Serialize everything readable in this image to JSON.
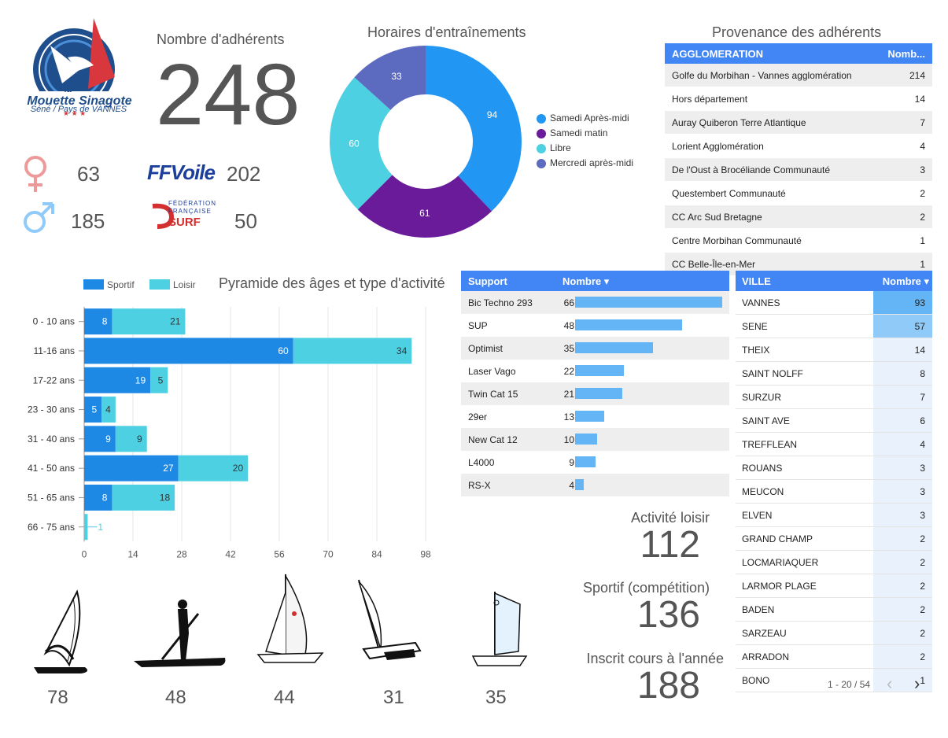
{
  "logo": {
    "name_line1": "la",
    "name_line2": "Mouette Sinagote",
    "subtitle": "Séné / Pays de VANNES",
    "stars": "★ ★ ★"
  },
  "members": {
    "label": "Nombre d'adhérents",
    "total": "248",
    "female": "63",
    "male": "185",
    "ffvoile_logo": "FFVoile",
    "ffvoile_count": "202",
    "ffsurf_logo_line1": "FÉDÉRATION",
    "ffsurf_logo_line2": "FRANÇAISE",
    "ffsurf_logo_line3": "SURF",
    "ffsurf_count": "50"
  },
  "donut": {
    "title": "Horaires d'entraînements",
    "slices": [
      {
        "label": "Samedi Après-midi",
        "value": 94,
        "color": "#2196f3"
      },
      {
        "label": "Samedi matin",
        "value": 61,
        "color": "#6a1b9a"
      },
      {
        "label": "Libre",
        "value": 60,
        "color": "#4dd0e1"
      },
      {
        "label": "Mercredi après-midi",
        "value": 33,
        "color": "#5c6bc0"
      }
    ]
  },
  "provenance": {
    "title": "Provenance des adhérents",
    "headers": [
      "AGGLOMERATION",
      "Nomb..."
    ],
    "rows": [
      [
        "Golfe du Morbihan - Vannes agglomération",
        "214"
      ],
      [
        "Hors département",
        "14"
      ],
      [
        "Auray Quiberon Terre Atlantique",
        "7"
      ],
      [
        "Lorient Agglomération",
        "4"
      ],
      [
        "De l'Oust à Brocéliande Communauté",
        "3"
      ],
      [
        "Questembert Communauté",
        "2"
      ],
      [
        "CC Arc Sud Bretagne",
        "2"
      ],
      [
        "Centre Morbihan Communauté",
        "1"
      ],
      [
        "CC Belle-Île-en-Mer",
        "1"
      ]
    ]
  },
  "chart_data": {
    "type": "bar",
    "orientation": "horizontal",
    "stacked": true,
    "title": "Pyramide des âges et type d'activité",
    "categories": [
      "0 - 10 ans",
      "11-16 ans",
      "17-22 ans",
      "23 - 30 ans",
      "31 - 40 ans",
      "41 - 50 ans",
      "51 - 65 ans",
      "66 - 75 ans"
    ],
    "series": [
      {
        "name": "Sportif",
        "values": [
          8,
          60,
          19,
          5,
          9,
          27,
          8,
          0
        ],
        "color": "#1e88e5"
      },
      {
        "name": "Loisir",
        "values": [
          21,
          34,
          5,
          4,
          9,
          20,
          18,
          1
        ],
        "color": "#4dd0e1"
      }
    ],
    "xticks": [
      0,
      14,
      28,
      42,
      56,
      70,
      84,
      98
    ],
    "xlim": [
      0,
      98
    ],
    "legend": "top-left"
  },
  "support": {
    "headers": [
      "Support",
      "Nombre ▾"
    ],
    "rows": [
      {
        "name": "Bic Techno 293",
        "value": 66
      },
      {
        "name": "SUP",
        "value": 48
      },
      {
        "name": "Optimist",
        "value": 35
      },
      {
        "name": "Laser Vago",
        "value": 22
      },
      {
        "name": "Twin Cat 15",
        "value": 21
      },
      {
        "name": "29er",
        "value": 13
      },
      {
        "name": "New Cat 12",
        "value": 10
      },
      {
        "name": "L4000",
        "value": 9
      },
      {
        "name": "RS-X",
        "value": 4
      }
    ],
    "bar_color": "#64b5f6"
  },
  "ville": {
    "headers": [
      "VILLE",
      "Nombre ▾"
    ],
    "rows": [
      {
        "name": "VANNES",
        "value": 93
      },
      {
        "name": "SENE",
        "value": 57
      },
      {
        "name": "THEIX",
        "value": 14
      },
      {
        "name": "SAINT NOLFF",
        "value": 8
      },
      {
        "name": "SURZUR",
        "value": 7
      },
      {
        "name": "SAINT AVE",
        "value": 6
      },
      {
        "name": "TREFFLEAN",
        "value": 4
      },
      {
        "name": "ROUANS",
        "value": 3
      },
      {
        "name": "MEUCON",
        "value": 3
      },
      {
        "name": "ELVEN",
        "value": 3
      },
      {
        "name": "GRAND CHAMP",
        "value": 2
      },
      {
        "name": "LOCMARIAQUER",
        "value": 2
      },
      {
        "name": "LARMOR PLAGE",
        "value": 2
      },
      {
        "name": "BADEN",
        "value": 2
      },
      {
        "name": "SARZEAU",
        "value": 2
      },
      {
        "name": "ARRADON",
        "value": 2
      },
      {
        "name": "BONO",
        "value": 1
      }
    ],
    "pagination": "1 - 20 / 54",
    "prev": "‹",
    "next": "›"
  },
  "activities": [
    {
      "label": "Activité loisir",
      "value": "112"
    },
    {
      "label": "Sportif (compétition)",
      "value": "136"
    },
    {
      "label": "Inscrit cours à l'année",
      "value": "188"
    }
  ],
  "crafts": [
    {
      "name": "windsurf",
      "count": "78"
    },
    {
      "name": "paddle",
      "count": "48"
    },
    {
      "name": "laser",
      "count": "44"
    },
    {
      "name": "catamaran",
      "count": "31"
    },
    {
      "name": "optimist",
      "count": "35"
    }
  ]
}
